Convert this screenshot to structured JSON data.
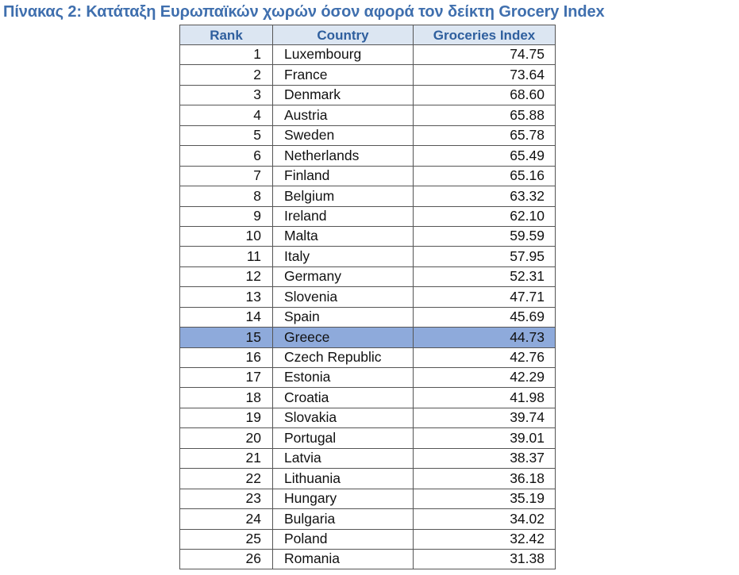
{
  "header": {
    "title": "Πίνακας 2: Κατάταξη Ευρωπαϊκών χωρών όσον αφορά τον δείκτη Grocery Index"
  },
  "table": {
    "columns": [
      "Rank",
      "Country",
      "Groceries Index"
    ],
    "rows": [
      [
        "1",
        "Luxembourg",
        "74.75"
      ],
      [
        "2",
        "France",
        "73.64"
      ],
      [
        "3",
        "Denmark",
        "68.60"
      ],
      [
        "4",
        "Austria",
        "65.88"
      ],
      [
        "5",
        "Sweden",
        "65.78"
      ],
      [
        "6",
        "Netherlands",
        "65.49"
      ],
      [
        "7",
        "Finland",
        "65.16"
      ],
      [
        "8",
        "Belgium",
        "63.32"
      ],
      [
        "9",
        "Ireland",
        "62.10"
      ],
      [
        "10",
        "Malta",
        "59.59"
      ],
      [
        "11",
        "Italy",
        "57.95"
      ],
      [
        "12",
        "Germany",
        "52.31"
      ],
      [
        "13",
        "Slovenia",
        "47.71"
      ],
      [
        "14",
        "Spain",
        "45.69"
      ],
      [
        "15",
        "Greece",
        "44.73"
      ],
      [
        "16",
        "Czech Republic",
        "42.76"
      ],
      [
        "17",
        "Estonia",
        "42.29"
      ],
      [
        "18",
        "Croatia",
        "41.98"
      ],
      [
        "19",
        "Slovakia",
        "39.74"
      ],
      [
        "20",
        "Portugal",
        "39.01"
      ],
      [
        "21",
        "Latvia",
        "38.37"
      ],
      [
        "22",
        "Lithuania",
        "36.18"
      ],
      [
        "23",
        "Hungary",
        "35.19"
      ],
      [
        "24",
        "Bulgaria",
        "34.02"
      ],
      [
        "25",
        "Poland",
        "32.42"
      ],
      [
        "26",
        "Romania",
        "31.38"
      ]
    ]
  }
}
